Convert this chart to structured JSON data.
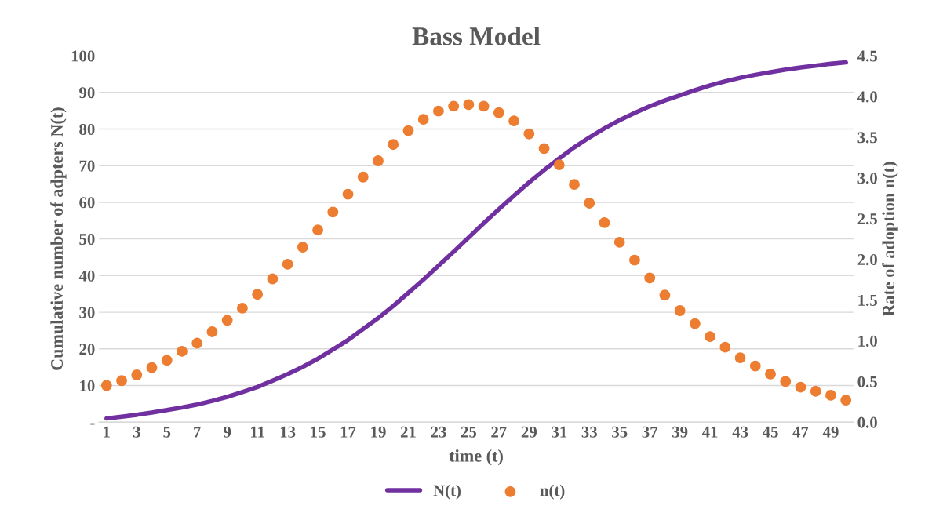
{
  "chart_data": {
    "type": "line",
    "title": "Bass Model",
    "xlabel": "time (t)",
    "ylabel": "Cumulative number of adpters N(t)",
    "y2label": "Rate of adoption n(t)",
    "categories": [
      "1",
      null,
      "3",
      null,
      "5",
      null,
      "7",
      null,
      "9",
      null,
      "11",
      null,
      "13",
      null,
      "15",
      null,
      "17",
      null,
      "19",
      null,
      "21",
      null,
      "23",
      null,
      "25",
      null,
      "27",
      null,
      "29",
      null,
      "31",
      null,
      "33",
      null,
      "35",
      null,
      "37",
      null,
      "39",
      null,
      "41",
      null,
      "43",
      null,
      "45",
      null,
      "47",
      null,
      "49",
      null
    ],
    "series": [
      {
        "name": "N(t)",
        "color": "#7030a0",
        "marker": "none",
        "line_style": "solid",
        "values": [
          1.0,
          1.5,
          2.0,
          2.6,
          3.3,
          4.0,
          4.8,
          5.8,
          6.9,
          8.2,
          9.6,
          11.3,
          13.1,
          15.1,
          17.3,
          19.8,
          22.4,
          25.4,
          28.4,
          31.7,
          35.3,
          38.9,
          42.7,
          46.5,
          50.4,
          54.3,
          58.1,
          61.8,
          65.4,
          68.8,
          72.0,
          75.0,
          77.7,
          80.2,
          82.4,
          84.4,
          86.2,
          87.8,
          89.2,
          90.6,
          91.9,
          93.0,
          94.0,
          94.8,
          95.5,
          96.2,
          96.8,
          97.3,
          97.8,
          98.2
        ]
      },
      {
        "name": "n(t)",
        "type": "scatter",
        "axis": "y2",
        "color": "#ed7d31",
        "marker": "circle",
        "values": [
          0.45,
          0.51,
          0.58,
          0.67,
          0.76,
          0.87,
          0.97,
          1.11,
          1.25,
          1.4,
          1.57,
          1.76,
          1.94,
          2.15,
          2.36,
          2.58,
          2.8,
          3.01,
          3.21,
          3.41,
          3.58,
          3.72,
          3.82,
          3.88,
          3.9,
          3.88,
          3.8,
          3.7,
          3.54,
          3.36,
          3.16,
          2.92,
          2.69,
          2.45,
          2.21,
          1.99,
          1.77,
          1.56,
          1.37,
          1.21,
          1.05,
          0.92,
          0.79,
          0.69,
          0.59,
          0.5,
          0.43,
          0.38,
          0.33,
          0.27
        ]
      }
    ],
    "ylim": [
      0,
      100
    ],
    "yticks": [
      {
        "value": 0,
        "label": "-"
      },
      10,
      20,
      30,
      40,
      50,
      60,
      70,
      80,
      90,
      100
    ],
    "y2lim": [
      0,
      4.5
    ],
    "y2ticks": [
      {
        "value": 0,
        "label": "0.0"
      },
      {
        "value": 0.5,
        "label": "0.5"
      },
      {
        "value": 1,
        "label": "1.0"
      },
      {
        "value": 1.5,
        "label": "1.5"
      },
      {
        "value": 2,
        "label": "2.0"
      },
      {
        "value": 2.5,
        "label": "2.5"
      },
      {
        "value": 3,
        "label": "3.0"
      },
      {
        "value": 3.5,
        "label": "3.5"
      },
      {
        "value": 4,
        "label": "4.0"
      },
      {
        "value": 4.5,
        "label": "4.5"
      }
    ],
    "grid": "y",
    "legend": "bottom"
  }
}
